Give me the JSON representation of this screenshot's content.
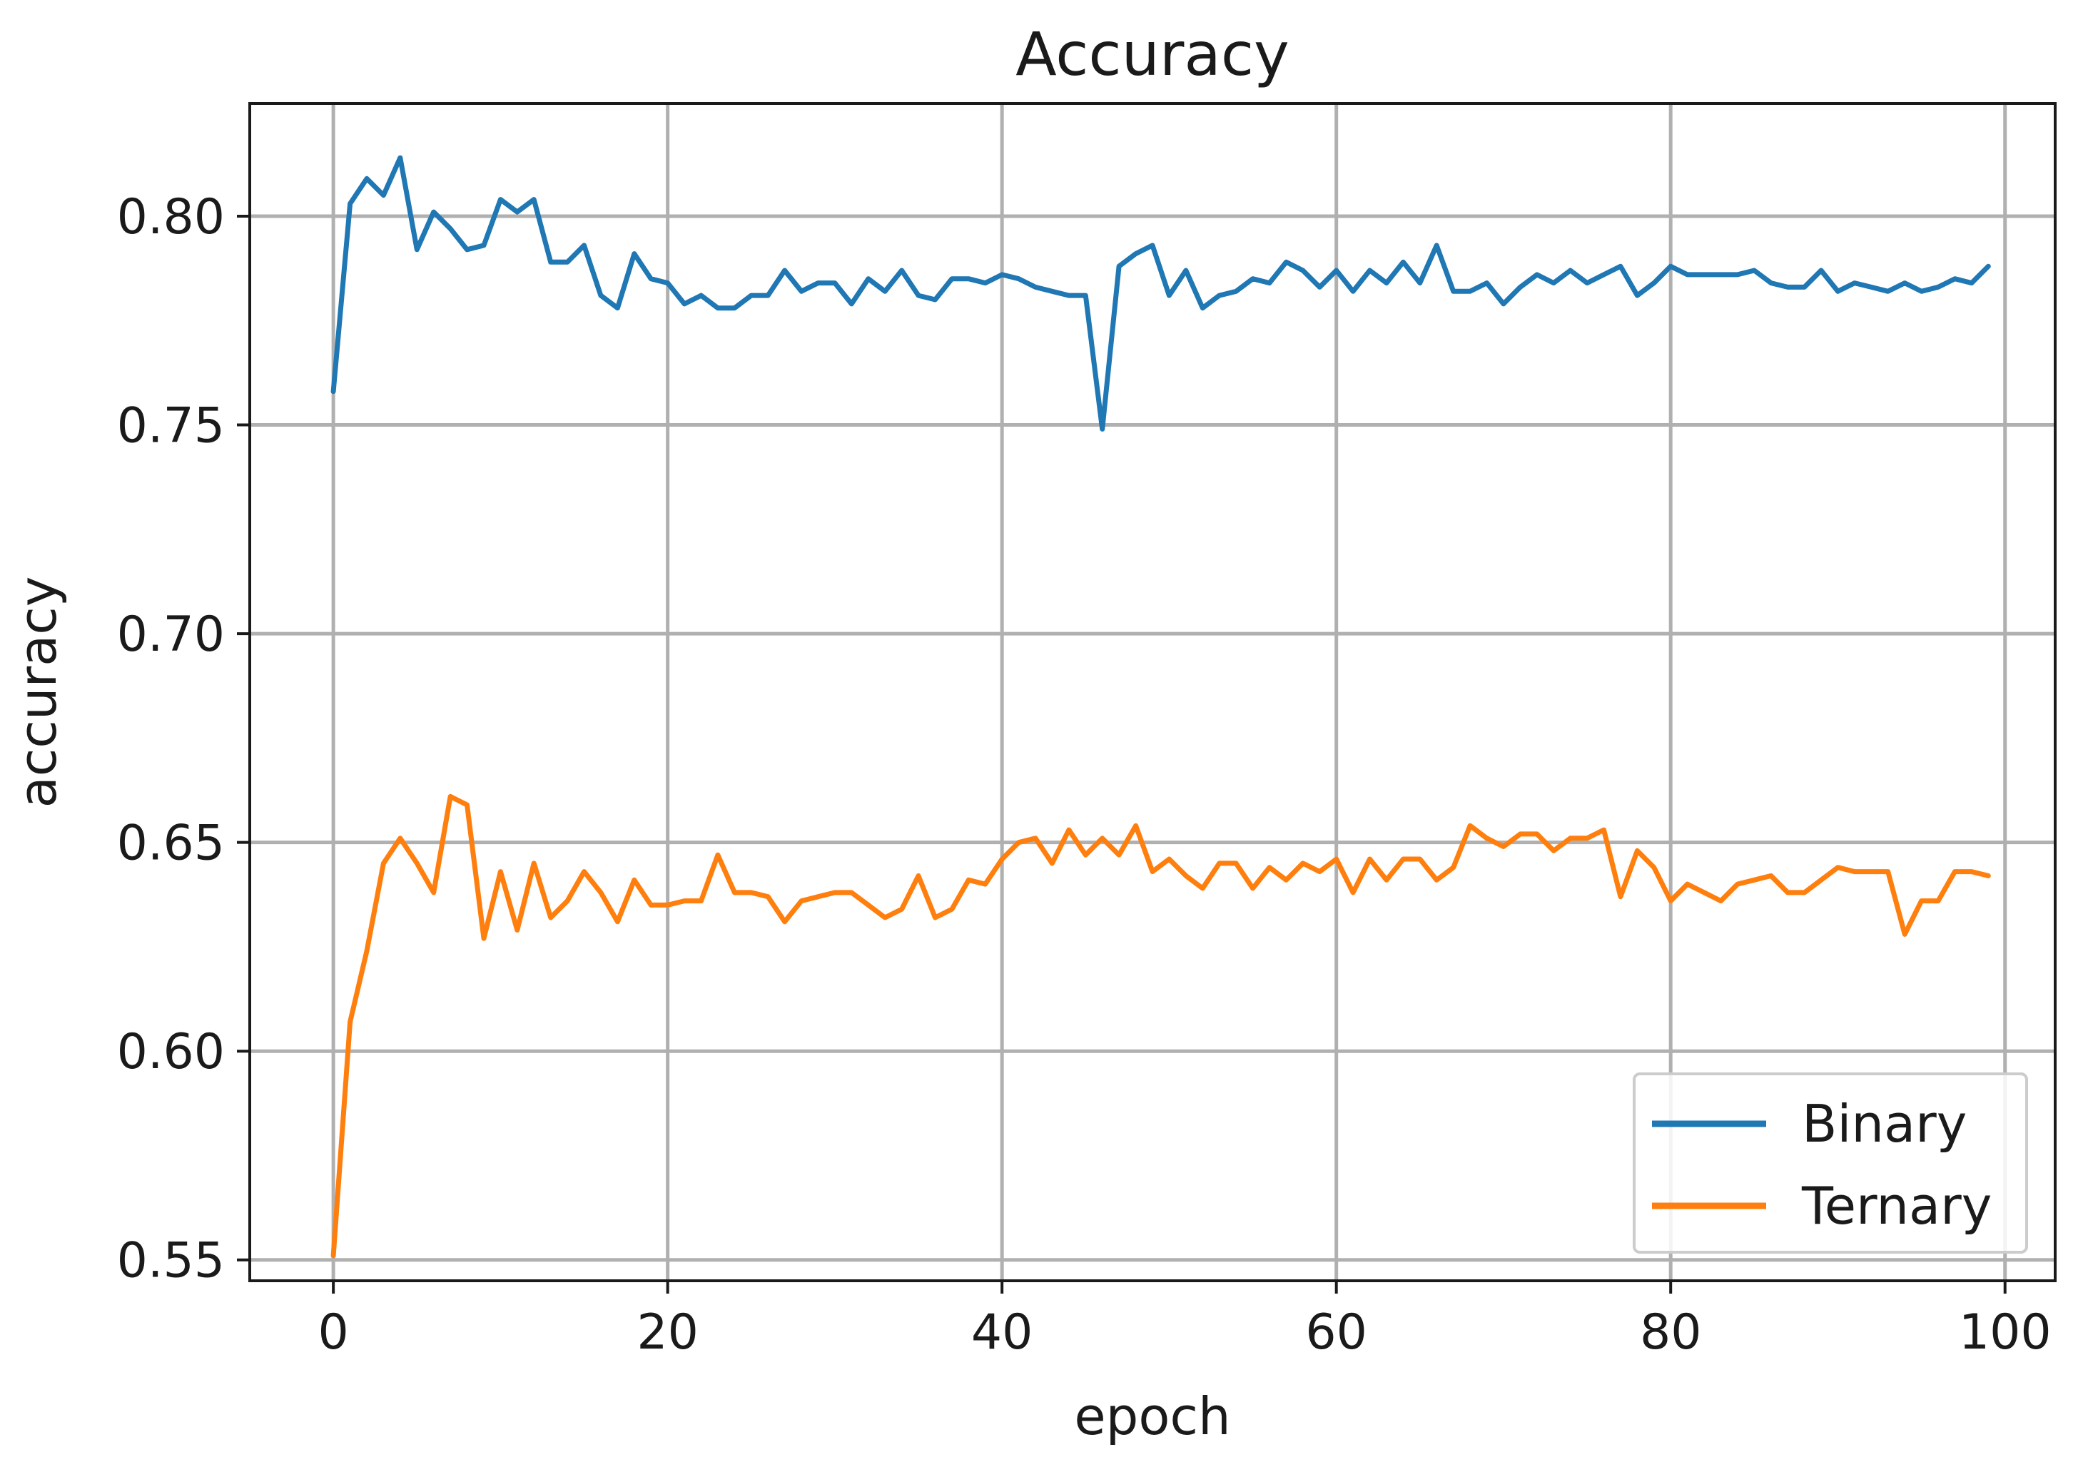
{
  "chart_data": {
    "type": "line",
    "title": "Accuracy",
    "xlabel": "epoch",
    "ylabel": "accuracy",
    "xlim": [
      -5,
      103
    ],
    "ylim": [
      0.545,
      0.827
    ],
    "xticks": [
      0,
      20,
      40,
      60,
      80,
      100
    ],
    "xtick_labels": [
      "0",
      "20",
      "40",
      "60",
      "80",
      "100"
    ],
    "yticks": [
      0.55,
      0.6,
      0.65,
      0.7,
      0.75,
      0.8
    ],
    "ytick_labels": [
      "0.55",
      "0.60",
      "0.65",
      "0.70",
      "0.75",
      "0.80"
    ],
    "grid": true,
    "legend_position": "lower-right",
    "x": [
      0,
      1,
      2,
      3,
      4,
      5,
      6,
      7,
      8,
      9,
      10,
      11,
      12,
      13,
      14,
      15,
      16,
      17,
      18,
      19,
      20,
      21,
      22,
      23,
      24,
      25,
      26,
      27,
      28,
      29,
      30,
      31,
      32,
      33,
      34,
      35,
      36,
      37,
      38,
      39,
      40,
      41,
      42,
      43,
      44,
      45,
      46,
      47,
      48,
      49,
      50,
      51,
      52,
      53,
      54,
      55,
      56,
      57,
      58,
      59,
      60,
      61,
      62,
      63,
      64,
      65,
      66,
      67,
      68,
      69,
      70,
      71,
      72,
      73,
      74,
      75,
      76,
      77,
      78,
      79,
      80,
      81,
      82,
      83,
      84,
      85,
      86,
      87,
      88,
      89,
      90,
      91,
      92,
      93,
      94,
      95,
      96,
      97,
      98,
      99
    ],
    "series": [
      {
        "name": "Binary",
        "color": "#1f77b4",
        "values": [
          0.758,
          0.803,
          0.809,
          0.805,
          0.814,
          0.792,
          0.801,
          0.797,
          0.792,
          0.793,
          0.804,
          0.801,
          0.804,
          0.789,
          0.789,
          0.793,
          0.781,
          0.778,
          0.791,
          0.785,
          0.784,
          0.779,
          0.781,
          0.778,
          0.778,
          0.781,
          0.781,
          0.787,
          0.782,
          0.784,
          0.784,
          0.779,
          0.785,
          0.782,
          0.787,
          0.781,
          0.78,
          0.785,
          0.785,
          0.784,
          0.786,
          0.785,
          0.783,
          0.782,
          0.781,
          0.781,
          0.749,
          0.788,
          0.791,
          0.793,
          0.781,
          0.787,
          0.778,
          0.781,
          0.782,
          0.785,
          0.784,
          0.789,
          0.787,
          0.783,
          0.787,
          0.782,
          0.787,
          0.784,
          0.789,
          0.784,
          0.793,
          0.782,
          0.782,
          0.784,
          0.779,
          0.783,
          0.786,
          0.784,
          0.787,
          0.784,
          0.786,
          0.788,
          0.781,
          0.784,
          0.788,
          0.786,
          0.786,
          0.786,
          0.786,
          0.787,
          0.784,
          0.783,
          0.783,
          0.787,
          0.782,
          0.784,
          0.783,
          0.782,
          0.784,
          0.782,
          0.783,
          0.785,
          0.784,
          0.788
        ]
      },
      {
        "name": "Ternary",
        "color": "#ff7f0e",
        "values": [
          0.551,
          0.607,
          0.624,
          0.645,
          0.651,
          0.645,
          0.638,
          0.661,
          0.659,
          0.627,
          0.643,
          0.629,
          0.645,
          0.632,
          0.636,
          0.643,
          0.638,
          0.631,
          0.641,
          0.635,
          0.635,
          0.636,
          0.636,
          0.647,
          0.638,
          0.638,
          0.637,
          0.631,
          0.636,
          0.637,
          0.638,
          0.638,
          0.635,
          0.632,
          0.634,
          0.642,
          0.632,
          0.634,
          0.641,
          0.64,
          0.646,
          0.65,
          0.651,
          0.645,
          0.653,
          0.647,
          0.651,
          0.647,
          0.654,
          0.643,
          0.646,
          0.642,
          0.639,
          0.645,
          0.645,
          0.639,
          0.644,
          0.641,
          0.645,
          0.643,
          0.646,
          0.638,
          0.646,
          0.641,
          0.646,
          0.646,
          0.641,
          0.644,
          0.654,
          0.651,
          0.649,
          0.652,
          0.652,
          0.648,
          0.651,
          0.651,
          0.653,
          0.637,
          0.648,
          0.644,
          0.636,
          0.64,
          0.638,
          0.636,
          0.64,
          0.641,
          0.642,
          0.638,
          0.638,
          0.641,
          0.644,
          0.643,
          0.643,
          0.643,
          0.628,
          0.636,
          0.636,
          0.643,
          0.643,
          0.642
        ]
      }
    ]
  }
}
